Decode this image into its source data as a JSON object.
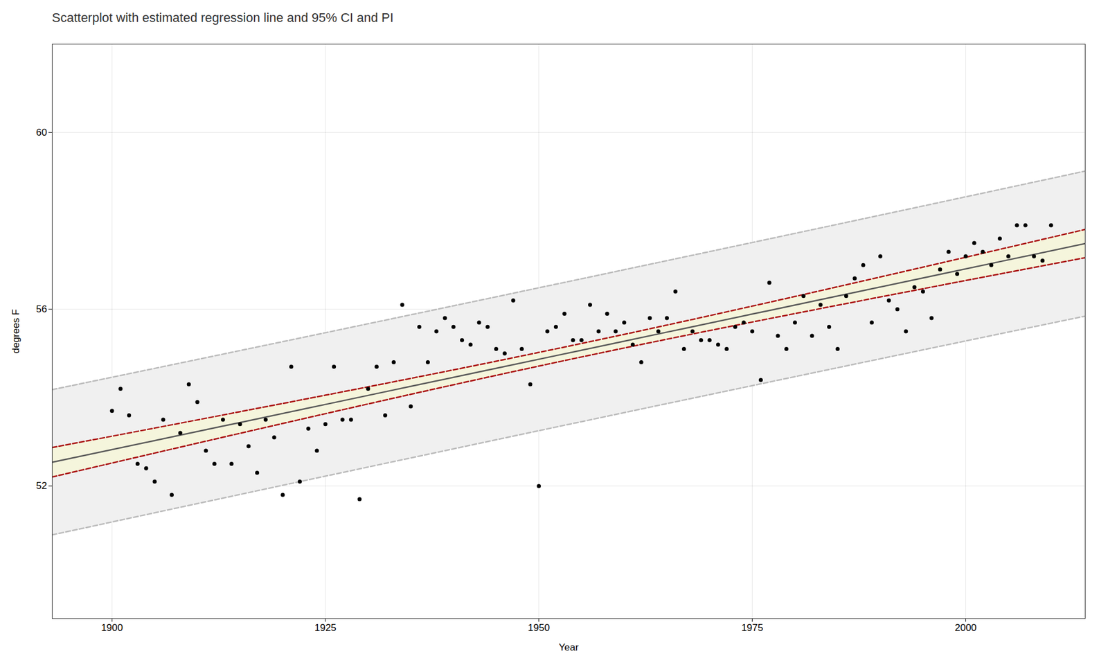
{
  "chart_data": {
    "type": "scatter",
    "title": "Scatterplot with estimated regression line and 95% CI and PI",
    "xlabel": "Year",
    "ylabel": "degrees F",
    "xlim": [
      1893,
      2014
    ],
    "ylim": [
      49.0,
      62.0
    ],
    "xticks": [
      1900,
      1925,
      1950,
      1975,
      2000
    ],
    "yticks": [
      52,
      56,
      60
    ],
    "grid": true,
    "series": [
      {
        "type": "band",
        "color": "#F0F0F0",
        "x": [
          1893,
          1905,
          1915,
          1925,
          1935,
          1945,
          1955,
          1965,
          1975,
          1985,
          1995,
          2005,
          2014
        ],
        "lower": [
          50.89326,
          51.393418,
          51.808719,
          52.222644,
          52.635179,
          53.046316,
          53.456047,
          53.864375,
          54.271297,
          54.676821,
          55.080955,
          55.483713,
          55.845029
        ],
        "upper": [
          54.18072,
          54.662234,
          55.064991,
          55.469126,
          55.874649,
          56.281572,
          56.689899,
          57.099631,
          57.510767,
          57.923303,
          58.337227,
          58.752529,
          59.127465
        ]
      },
      {
        "type": "line",
        "color": "#BBBBBB",
        "line_style": "dashed",
        "x": [
          1893,
          1905,
          1915,
          1925,
          1935,
          1945,
          1955,
          1965,
          1975,
          1985,
          1995,
          2005,
          2014
        ],
        "values": [
          54.18072,
          54.662234,
          55.064991,
          55.469126,
          55.874649,
          56.281572,
          56.689899,
          57.099631,
          57.510767,
          57.923303,
          58.337227,
          58.752529,
          59.127465
        ]
      },
      {
        "type": "line",
        "color": "#BBBBBB",
        "line_style": "dashed",
        "x": [
          1893,
          1905,
          1915,
          1925,
          1935,
          1945,
          1955,
          1965,
          1975,
          1985,
          1995,
          2005,
          2014
        ],
        "values": [
          50.89326,
          51.393418,
          51.808719,
          52.222644,
          52.635179,
          53.046316,
          53.456047,
          53.864375,
          54.271297,
          54.676821,
          55.080955,
          55.483713,
          55.845029
        ]
      },
      {
        "type": "band",
        "color": "#F5F5DC",
        "x": [
          1893,
          1905,
          1915,
          1925,
          1935,
          1945,
          1955,
          1965,
          1975,
          1985,
          1995,
          2005,
          2014
        ],
        "lower": [
          52.204208,
          52.744656,
          53.192473,
          53.636585,
          54.074808,
          54.503891,
          54.920188,
          55.32195,
          55.710926,
          56.090762,
          56.464709,
          56.834951,
          57.166105
        ],
        "upper": [
          52.869772,
          53.310996,
          53.681237,
          54.055185,
          54.43502,
          54.823997,
          55.225758,
          55.642056,
          56.071138,
          56.509362,
          56.953473,
          57.401291,
          57.806389
        ]
      },
      {
        "type": "line",
        "color": "#AA1111",
        "line_style": "dashed",
        "x": [
          1893,
          1905,
          1915,
          1925,
          1935,
          1945,
          1955,
          1965,
          1975,
          1985,
          1995,
          2005,
          2014
        ],
        "values": [
          52.869772,
          53.310996,
          53.681237,
          54.055185,
          54.43502,
          54.823997,
          55.225758,
          55.642056,
          56.071138,
          56.509362,
          56.953473,
          57.401291,
          57.806389
        ]
      },
      {
        "type": "line",
        "color": "#AA1111",
        "line_style": "dashed",
        "x": [
          1893,
          1905,
          1915,
          1925,
          1935,
          1945,
          1955,
          1965,
          1975,
          1985,
          1995,
          2005,
          2014
        ],
        "values": [
          52.204208,
          52.744656,
          53.192473,
          53.636585,
          54.074808,
          54.503891,
          54.920188,
          55.32195,
          55.710926,
          56.090762,
          56.464709,
          56.834951,
          57.166105
        ]
      },
      {
        "type": "line",
        "color": "#595959",
        "line_style": "solid",
        "x": [
          1893,
          1905,
          1915,
          1925,
          1935,
          1945,
          1955,
          1965,
          1975,
          1985,
          1995,
          2005,
          2014
        ],
        "values": [
          52.53699,
          53.027826,
          53.436855,
          53.845885,
          54.254914,
          54.663944,
          55.072973,
          55.482003,
          55.891032,
          56.300062,
          56.709091,
          57.118121,
          57.486247
        ]
      },
      {
        "type": "scatter",
        "color": "#000000",
        "x": [
          1900,
          1901,
          1902,
          1903,
          1904,
          1905,
          1906,
          1907,
          1908,
          1909,
          1910,
          1911,
          1912,
          1913,
          1914,
          1915,
          1916,
          1917,
          1918,
          1919,
          1920,
          1921,
          1922,
          1923,
          1924,
          1925,
          1926,
          1927,
          1928,
          1929,
          1930,
          1931,
          1932,
          1933,
          1934,
          1935,
          1936,
          1937,
          1938,
          1939,
          1940,
          1941,
          1942,
          1943,
          1944,
          1945,
          1946,
          1947,
          1948,
          1949,
          1950,
          1951,
          1952,
          1953,
          1954,
          1955,
          1956,
          1957,
          1958,
          1959,
          1960,
          1961,
          1962,
          1963,
          1964,
          1965,
          1966,
          1967,
          1968,
          1969,
          1970,
          1971,
          1972,
          1973,
          1974,
          1975,
          1976,
          1977,
          1978,
          1979,
          1980,
          1981,
          1982,
          1983,
          1984,
          1985,
          1986,
          1987,
          1988,
          1989,
          1990,
          1991,
          1992,
          1993,
          1994,
          1995,
          1996,
          1997,
          1998,
          1999,
          2000,
          2001,
          2002,
          2003,
          2004,
          2005,
          2006,
          2007,
          2008,
          2009,
          2010
        ],
        "values": [
          53.7,
          54.2,
          53.6,
          52.5,
          52.4,
          52.1,
          53.5,
          51.8,
          53.2,
          54.3,
          53.9,
          52.8,
          52.5,
          53.5,
          52.5,
          53.4,
          52.9,
          52.3,
          53.5,
          53.1,
          51.8,
          54.7,
          52.1,
          53.3,
          52.8,
          53.4,
          54.7,
          53.5,
          53.5,
          51.7,
          54.2,
          54.7,
          53.6,
          54.8,
          56.1,
          53.8,
          55.6,
          54.8,
          55.5,
          55.8,
          55.6,
          55.3,
          55.2,
          55.7,
          55.6,
          55.1,
          55.0,
          56.2,
          55.1,
          54.3,
          52.0,
          55.5,
          55.6,
          55.9,
          55.3,
          55.3,
          56.1,
          55.5,
          55.9,
          55.5,
          55.7,
          55.2,
          54.8,
          55.8,
          55.5,
          55.8,
          56.4,
          55.1,
          55.5,
          55.3,
          55.3,
          55.2,
          55.1,
          55.6,
          55.7,
          55.5,
          54.4,
          56.6,
          55.4,
          55.1,
          55.7,
          56.3,
          55.4,
          56.1,
          55.6,
          55.1,
          56.3,
          56.7,
          57.0,
          55.7,
          57.2,
          56.2,
          56.0,
          55.5,
          56.5,
          56.4,
          55.8,
          56.9,
          57.3,
          56.8,
          57.2,
          57.5,
          57.3,
          57.0,
          57.6,
          57.2,
          57.9,
          57.9,
          57.2,
          57.1,
          57.9
        ]
      }
    ]
  }
}
